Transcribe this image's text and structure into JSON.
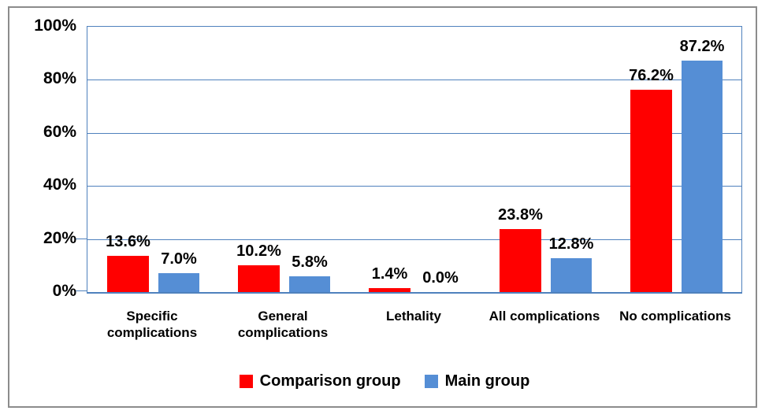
{
  "chart_data": {
    "type": "bar",
    "title": "",
    "categories": [
      "Specific complications",
      "General complications",
      "Lethality",
      "All complications",
      "No complications"
    ],
    "series": [
      {
        "name": "Comparison group",
        "color": "#FF0000",
        "values": [
          13.6,
          10.2,
          1.4,
          23.8,
          76.2
        ],
        "labels": [
          "13.6%",
          "10.2%",
          "1.4%",
          "23.8%",
          "76.2%"
        ]
      },
      {
        "name": "Main group",
        "color": "#558ED5",
        "values": [
          7.0,
          5.8,
          0.0,
          12.8,
          87.2
        ],
        "labels": [
          "7.0%",
          "5.8%",
          "0.0%",
          "12.8%",
          "87.2%"
        ]
      }
    ],
    "y_axis": {
      "min": 0,
      "max": 100,
      "step": 20,
      "ticks": [
        "0%",
        "20%",
        "40%",
        "60%",
        "80%",
        "100%"
      ],
      "tick_marks_visible_at": [
        0,
        20
      ]
    },
    "grid": true,
    "legend_position": "bottom",
    "colors": {
      "gridline": "#4F81BD",
      "frame_border": "#8C8C8C",
      "text": "#000000",
      "background": "#FFFFFF"
    }
  }
}
